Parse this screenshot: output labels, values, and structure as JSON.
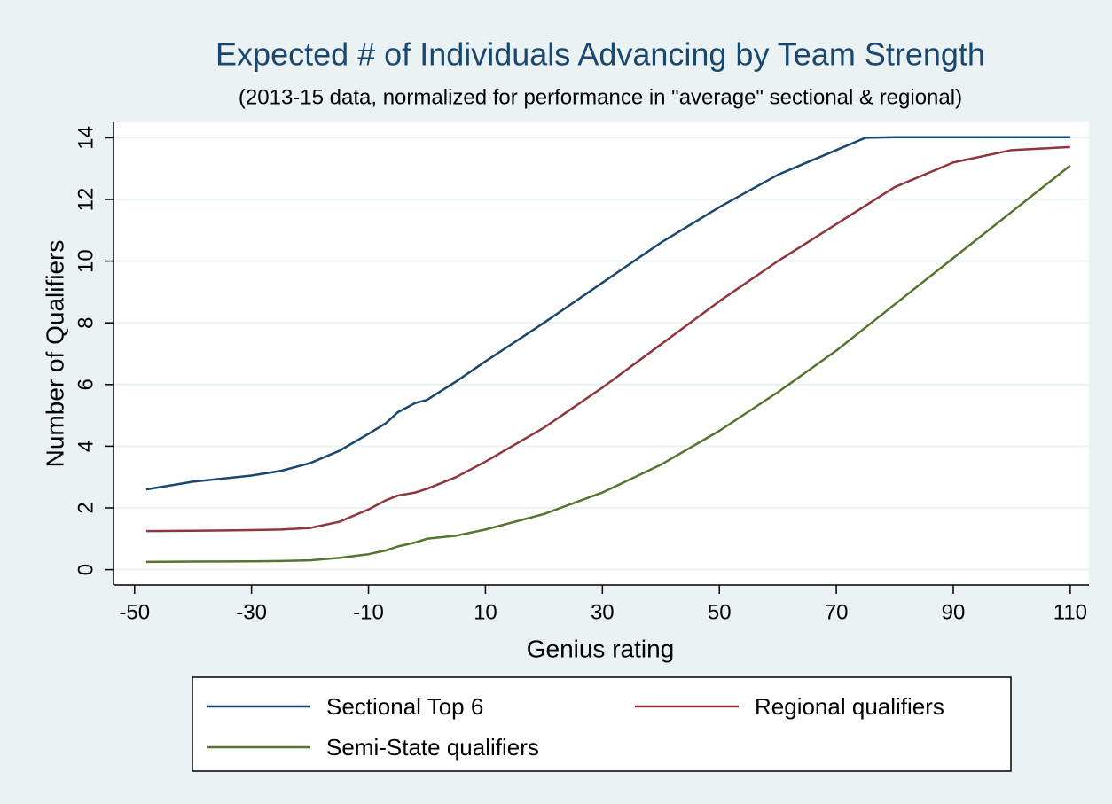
{
  "chart_data": {
    "type": "line",
    "title": "Expected # of Individuals Advancing by Team Strength",
    "subtitle": "(2013-15 data, normalized for performance in \"average\" sectional & regional)",
    "x_label": "Genius rating",
    "y_label": "Number of Qualifiers",
    "x": [
      -48,
      -40,
      -30,
      -25,
      -20,
      -15,
      -10,
      -7,
      -5,
      -2,
      0,
      5,
      10,
      20,
      30,
      40,
      50,
      60,
      70,
      75,
      80,
      90,
      100,
      110
    ],
    "series": [
      {
        "name": "Sectional Top 6",
        "color": "#1a476f",
        "values": [
          2.6,
          2.85,
          3.05,
          3.2,
          3.45,
          3.85,
          4.4,
          4.75,
          5.1,
          5.4,
          5.5,
          6.1,
          6.75,
          8.0,
          9.3,
          10.6,
          11.75,
          12.8,
          13.6,
          14.0,
          14.02,
          14.02,
          14.02,
          14.02
        ]
      },
      {
        "name": "Regional qualifiers",
        "color": "#90353b",
        "values": [
          1.25,
          1.26,
          1.28,
          1.3,
          1.35,
          1.55,
          1.95,
          2.25,
          2.4,
          2.5,
          2.62,
          3.0,
          3.5,
          4.6,
          5.9,
          7.3,
          8.7,
          10.0,
          11.2,
          11.8,
          12.4,
          13.2,
          13.6,
          13.7
        ]
      },
      {
        "name": "Semi-State qualifiers",
        "color": "#55752f",
        "values": [
          0.25,
          0.26,
          0.27,
          0.28,
          0.3,
          0.38,
          0.5,
          0.62,
          0.75,
          0.88,
          1.0,
          1.1,
          1.3,
          1.8,
          2.5,
          3.4,
          4.5,
          5.75,
          7.1,
          7.85,
          8.6,
          10.1,
          11.6,
          13.1
        ]
      }
    ],
    "xlim": [
      -53.6,
      113.2
    ],
    "xticks": [
      -50,
      -30,
      -10,
      10,
      30,
      50,
      70,
      90,
      110
    ],
    "ylim": [
      -0.5,
      14.5
    ],
    "yticks": [
      0,
      2,
      4,
      6,
      8,
      10,
      12,
      14
    ],
    "grid": true
  }
}
